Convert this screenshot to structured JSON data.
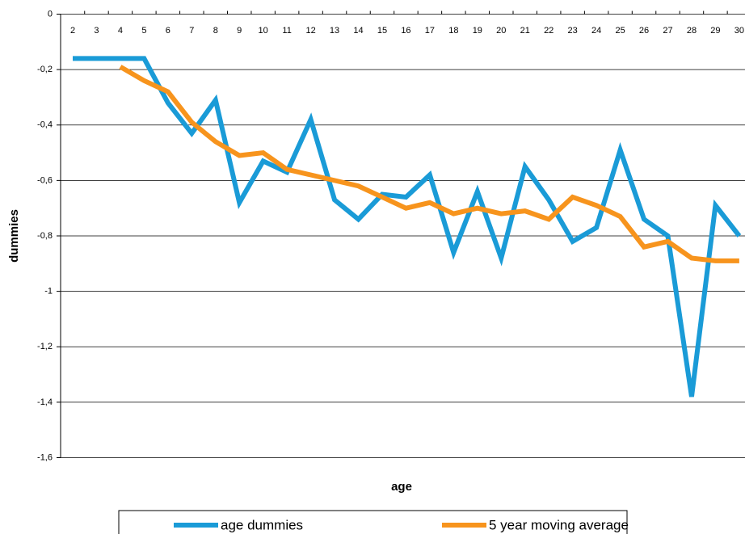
{
  "chart_data": {
    "type": "line",
    "x_label": "age",
    "y_label": "dummies",
    "categories": [
      "2",
      "3",
      "4",
      "5",
      "6",
      "7",
      "8",
      "9",
      "10",
      "11",
      "12",
      "13",
      "14",
      "15",
      "16",
      "17",
      "18",
      "19",
      "20",
      "21",
      "22",
      "23",
      "24",
      "25",
      "26",
      "27",
      "28",
      "29",
      "30"
    ],
    "series": [
      {
        "name": "age dummies",
        "color": "#1a9bd7",
        "values": [
          -0.16,
          -0.16,
          -0.16,
          -0.16,
          -0.32,
          -0.43,
          -0.31,
          -0.68,
          -0.53,
          -0.57,
          -0.38,
          -0.67,
          -0.74,
          -0.65,
          -0.66,
          -0.58,
          -0.86,
          -0.64,
          -0.88,
          -0.55,
          -0.67,
          -0.82,
          -0.77,
          -0.49,
          -0.74,
          -0.8,
          -1.38,
          -0.69,
          -0.8
        ]
      },
      {
        "name": "5 year moving average",
        "color": "#f7941d",
        "values": [
          null,
          null,
          -0.19,
          -0.24,
          -0.28,
          -0.39,
          -0.46,
          -0.51,
          -0.5,
          -0.56,
          -0.58,
          -0.6,
          -0.62,
          -0.66,
          -0.7,
          -0.68,
          -0.72,
          -0.7,
          -0.72,
          -0.71,
          -0.74,
          -0.66,
          -0.69,
          -0.73,
          -0.84,
          -0.82,
          -0.88,
          -0.89,
          -0.89
        ]
      }
    ],
    "ylim": [
      0,
      -1.6
    ],
    "yticks": [
      0,
      {
        "value": -0.2,
        "label": "-0,2"
      },
      {
        "value": -0.4,
        "label": "-0,4"
      },
      {
        "value": -0.6,
        "label": "-0,6"
      },
      {
        "value": -0.8,
        "label": "-0,8"
      },
      -1,
      {
        "value": -1.2,
        "label": "-1,2"
      },
      {
        "value": -1.4,
        "label": "-1,4"
      },
      {
        "value": -1.6,
        "label": "-1,6"
      }
    ],
    "grid": true,
    "legend": "bottom"
  }
}
